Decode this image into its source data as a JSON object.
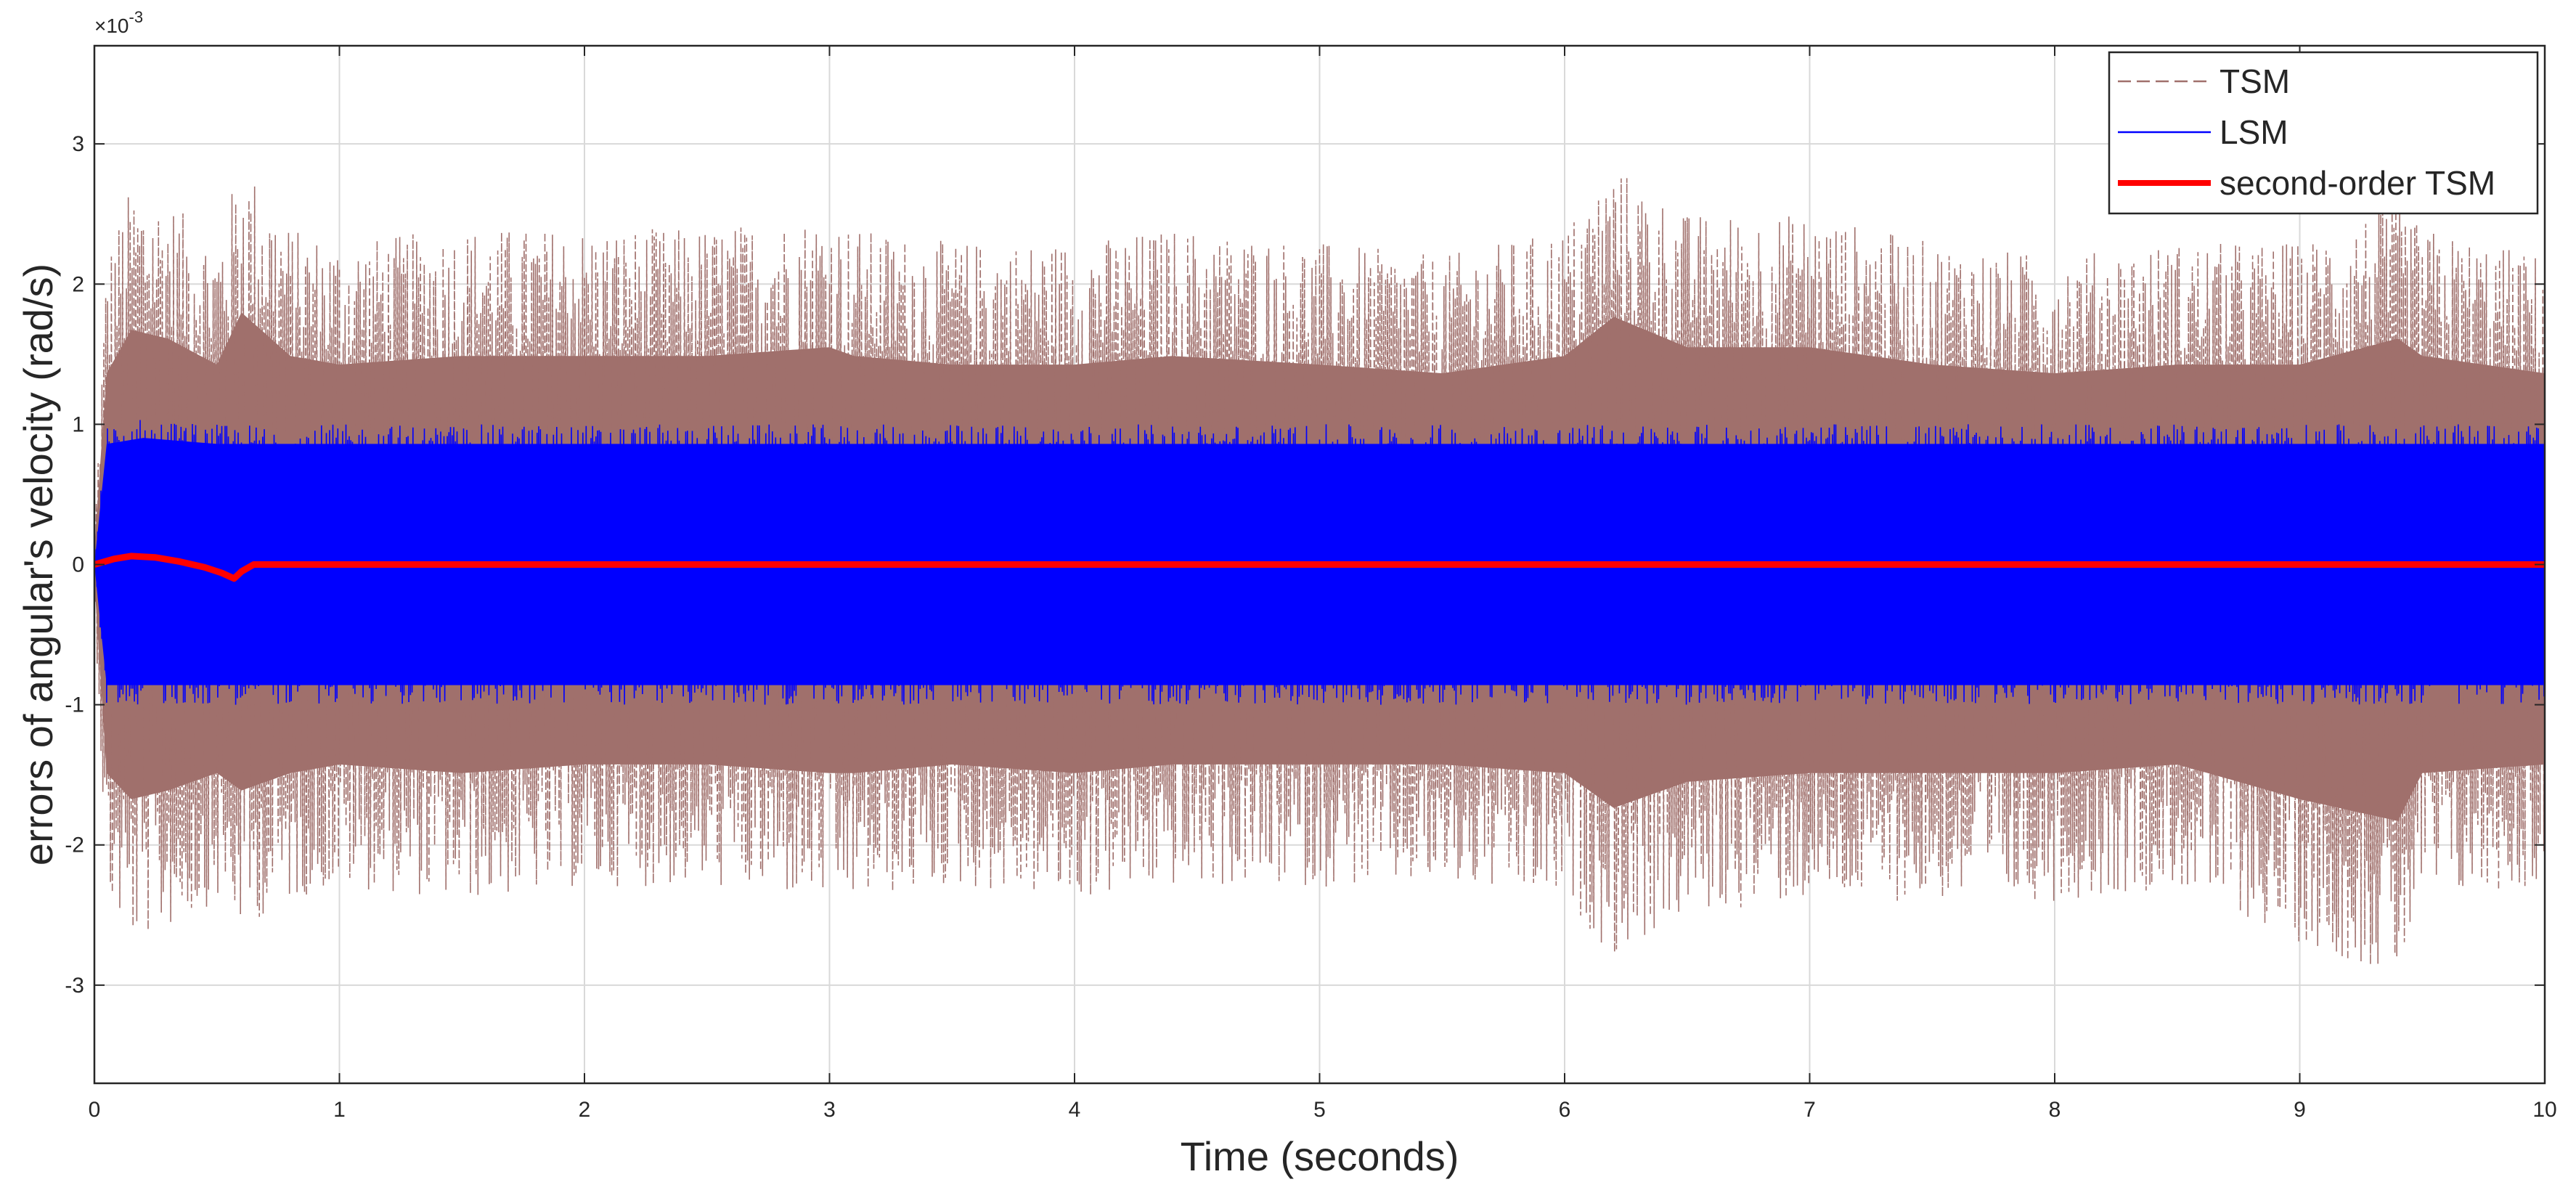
{
  "chart_data": {
    "type": "line",
    "title": "",
    "xlabel": "Time (seconds)",
    "ylabel": "errors of angular's velocity (rad/s)",
    "y_exponent_label": "×10",
    "y_exponent_power": "-3",
    "xlim": [
      0,
      10
    ],
    "ylim": [
      -3.7,
      3.7
    ],
    "x_ticks": [
      0,
      1,
      2,
      3,
      4,
      5,
      6,
      7,
      8,
      9,
      10
    ],
    "y_ticks": [
      -3,
      -2,
      -1,
      0,
      1,
      2,
      3
    ],
    "x_tick_labels": [
      "0",
      "1",
      "2",
      "3",
      "4",
      "5",
      "6",
      "7",
      "8",
      "9",
      "10"
    ],
    "y_tick_labels": [
      "-3",
      "-2",
      "-1",
      "0",
      "1",
      "2",
      "3"
    ],
    "grid": true,
    "legend_position": "top-right",
    "series": [
      {
        "name": "TSM",
        "style": "dashed",
        "color": "#a0706c",
        "envelope_x": [
          0,
          0.05,
          0.15,
          0.3,
          0.5,
          0.6,
          0.8,
          1.0,
          1.5,
          2.0,
          2.5,
          3.0,
          3.1,
          3.5,
          4.0,
          4.4,
          5.0,
          5.5,
          6.0,
          6.2,
          6.5,
          7.0,
          7.5,
          8.0,
          8.5,
          9.0,
          9.4,
          9.5,
          10.0
        ],
        "envelope_upper": [
          0.2,
          2.2,
          2.7,
          2.6,
          2.3,
          2.9,
          2.4,
          2.3,
          2.4,
          2.4,
          2.4,
          2.5,
          2.4,
          2.3,
          2.3,
          2.4,
          2.3,
          2.2,
          2.4,
          2.85,
          2.5,
          2.5,
          2.3,
          2.2,
          2.3,
          2.3,
          2.6,
          2.4,
          2.2
        ],
        "envelope_lower": [
          -0.2,
          -2.4,
          -2.7,
          -2.6,
          -2.4,
          -2.6,
          -2.4,
          -2.3,
          -2.4,
          -2.3,
          -2.3,
          -2.4,
          -2.4,
          -2.3,
          -2.4,
          -2.3,
          -2.3,
          -2.3,
          -2.4,
          -2.8,
          -2.5,
          -2.4,
          -2.4,
          -2.4,
          -2.3,
          -2.7,
          -2.95,
          -2.4,
          -2.3
        ],
        "peak_upper": 2.9,
        "peak_lower": -2.95
      },
      {
        "name": "LSM",
        "style": "solid",
        "color": "#0000ff",
        "envelope_x": [
          0,
          0.05,
          0.2,
          0.5,
          1.0,
          2.0,
          3.0,
          4.0,
          5.0,
          6.0,
          7.0,
          8.0,
          9.0,
          10.0
        ],
        "envelope_upper": [
          0.0,
          1.0,
          1.05,
          1.0,
          1.0,
          1.0,
          1.0,
          1.0,
          1.0,
          1.0,
          1.0,
          1.0,
          1.0,
          1.0
        ],
        "envelope_lower": [
          0.0,
          -1.0,
          -1.0,
          -1.0,
          -1.0,
          -1.0,
          -1.0,
          -1.0,
          -1.0,
          -1.0,
          -1.0,
          -1.0,
          -1.0,
          -1.0
        ],
        "peak_upper": 1.1,
        "peak_lower": -1.1
      },
      {
        "name": "second-order TSM",
        "style": "solid",
        "color": "#ff0000",
        "x": [
          0,
          0.08,
          0.15,
          0.25,
          0.35,
          0.45,
          0.52,
          0.57,
          0.6,
          0.65,
          0.7,
          1.0,
          2.0,
          3.0,
          4.0,
          5.0,
          6.0,
          7.0,
          8.0,
          9.0,
          10.0
        ],
        "values": [
          0.0,
          0.04,
          0.06,
          0.05,
          0.02,
          -0.02,
          -0.06,
          -0.1,
          -0.05,
          0.0,
          0.0,
          0.0,
          0.0,
          0.0,
          0.0,
          0.0,
          0.0,
          0.0,
          0.0,
          0.0,
          0.0
        ]
      }
    ]
  }
}
